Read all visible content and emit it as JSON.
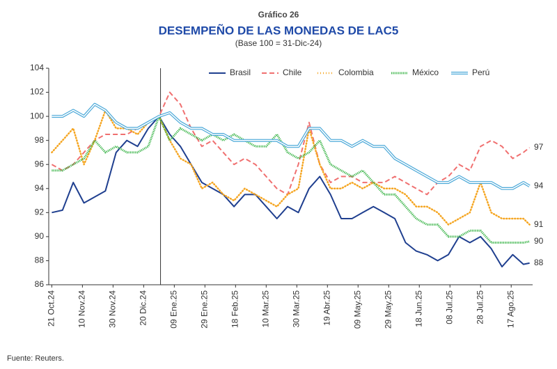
{
  "chart_data": {
    "type": "line",
    "kicker": "Gráfico 26",
    "title": "DESEMPEÑO DE LAS MONEDAS DE LAC5",
    "subtitle": "(Base 100 = 31-Dic-24)",
    "source": "Fuente: Reuters.",
    "x": [
      "2024-10-21",
      "2024-10-28",
      "2024-11-04",
      "2024-11-11",
      "2024-11-18",
      "2024-11-25",
      "2024-12-02",
      "2024-12-09",
      "2024-12-16",
      "2024-12-23",
      "2024-12-30",
      "2025-01-06",
      "2025-01-13",
      "2025-01-20",
      "2025-01-27",
      "2025-02-03",
      "2025-02-10",
      "2025-02-17",
      "2025-02-24",
      "2025-03-03",
      "2025-03-10",
      "2025-03-17",
      "2025-03-24",
      "2025-03-31",
      "2025-04-07",
      "2025-04-14",
      "2025-04-21",
      "2025-04-28",
      "2025-05-05",
      "2025-05-12",
      "2025-05-19",
      "2025-05-26",
      "2025-06-02",
      "2025-06-09",
      "2025-06-16",
      "2025-06-23",
      "2025-06-30",
      "2025-07-07",
      "2025-07-14",
      "2025-07-21",
      "2025-07-28",
      "2025-08-04",
      "2025-08-11",
      "2025-08-18",
      "2025-08-25",
      "2025-08-29"
    ],
    "series": [
      {
        "name": "Brasil",
        "color": "#1f3f8f",
        "style": "solid",
        "end_label": 88,
        "values": [
          92,
          92.2,
          94.5,
          92.8,
          93.3,
          93.8,
          97,
          98,
          97.5,
          99,
          100,
          98.5,
          97.5,
          96,
          94.5,
          94,
          93.5,
          92.5,
          93.5,
          93.5,
          92.5,
          91.5,
          92.5,
          92,
          94,
          95,
          93.5,
          91.5,
          91.5,
          92,
          92.5,
          92,
          91.5,
          89.5,
          88.8,
          88.5,
          88,
          88.5,
          90,
          89.5,
          90,
          89,
          87.5,
          88.5,
          87.7,
          87.8
        ]
      },
      {
        "name": "Chile",
        "color": "#f07070",
        "style": "dashed",
        "end_label": 97,
        "values": [
          96,
          95.5,
          96,
          97,
          98,
          98.5,
          98.5,
          98.5,
          99,
          99.5,
          100,
          102,
          101,
          99,
          97.5,
          98,
          97,
          96,
          96.5,
          96,
          95,
          94,
          93.5,
          96,
          99.5,
          96,
          94.5,
          95,
          95,
          94.5,
          94.5,
          94.5,
          95,
          94.5,
          94,
          93.5,
          94.5,
          95,
          96,
          95.5,
          97.5,
          98,
          97.5,
          96.5,
          97,
          97.4
        ]
      },
      {
        "name": "Colombia",
        "color": "#f5a623",
        "style": "dotted",
        "end_label": 91,
        "values": [
          97,
          98,
          99,
          96,
          98,
          100.5,
          99,
          99,
          98.5,
          99.5,
          100,
          98,
          96.5,
          96,
          94,
          94.5,
          93.5,
          93,
          94,
          93.5,
          93,
          92.5,
          93.5,
          94,
          99,
          96,
          94,
          94,
          94.5,
          94,
          94.5,
          94,
          94,
          93.5,
          92.5,
          92.5,
          92,
          91,
          91.5,
          92,
          94.5,
          92,
          91.5,
          91.5,
          91.5,
          91
        ]
      },
      {
        "name": "México",
        "color": "#3cb54a",
        "style": "dense",
        "end_label": 90,
        "values": [
          95.5,
          95.5,
          96,
          96.5,
          98,
          97,
          97.5,
          97,
          97,
          97.5,
          100,
          98,
          99,
          98.5,
          98,
          98.5,
          98,
          98.5,
          98,
          97.5,
          97.5,
          98.5,
          97,
          96.5,
          97,
          98,
          96,
          95.5,
          95,
          95.5,
          94.5,
          93.5,
          93.5,
          92.5,
          91.5,
          91,
          91,
          90,
          90,
          90.5,
          90.5,
          89.5,
          89.5,
          89.5,
          89.5,
          89.6
        ]
      },
      {
        "name": "Perú",
        "color": "#4aa8d8",
        "style": "double",
        "end_label": 94,
        "values": [
          100,
          100,
          100.5,
          100,
          101,
          100.5,
          99.5,
          99,
          99,
          99.5,
          100,
          100.3,
          99.5,
          99,
          99,
          98.5,
          98.5,
          98,
          98,
          98,
          98,
          98,
          97.5,
          97.5,
          99,
          99,
          98,
          98,
          97.5,
          98,
          97.5,
          97.5,
          96.5,
          96,
          95.5,
          95,
          94.5,
          94.5,
          95,
          94.5,
          94.5,
          94.5,
          94,
          94,
          94.5,
          94.2
        ]
      }
    ],
    "reference_x": "2024-12-31",
    "xlim": [
      "2024-10-19",
      "2025-08-31"
    ],
    "xticks": [
      {
        "value": "2024-10-21",
        "label": "21 Oct.24"
      },
      {
        "value": "2024-11-10",
        "label": "10 Nov.24"
      },
      {
        "value": "2024-11-30",
        "label": "30 Nov.24"
      },
      {
        "value": "2024-12-20",
        "label": "20 Dic.24"
      },
      {
        "value": "2025-01-09",
        "label": "09 Ene.25"
      },
      {
        "value": "2025-01-29",
        "label": "29 Ene.25"
      },
      {
        "value": "2025-02-18",
        "label": "18 Feb.25"
      },
      {
        "value": "2025-03-10",
        "label": "10 Mar.25"
      },
      {
        "value": "2025-03-30",
        "label": "30 Mar.25"
      },
      {
        "value": "2025-04-19",
        "label": "19 Abr.25"
      },
      {
        "value": "2025-05-09",
        "label": "09 May.25"
      },
      {
        "value": "2025-05-29",
        "label": "29 May.25"
      },
      {
        "value": "2025-06-18",
        "label": "18 Jun.25"
      },
      {
        "value": "2025-07-08",
        "label": "08 Jul.25"
      },
      {
        "value": "2025-07-28",
        "label": "28 Jul.25"
      },
      {
        "value": "2025-08-17",
        "label": "17 Ago.25"
      }
    ],
    "ylim": [
      86,
      104
    ],
    "yticks": [
      86,
      88,
      90,
      92,
      94,
      96,
      98,
      100,
      102,
      104
    ],
    "grid": false
  }
}
